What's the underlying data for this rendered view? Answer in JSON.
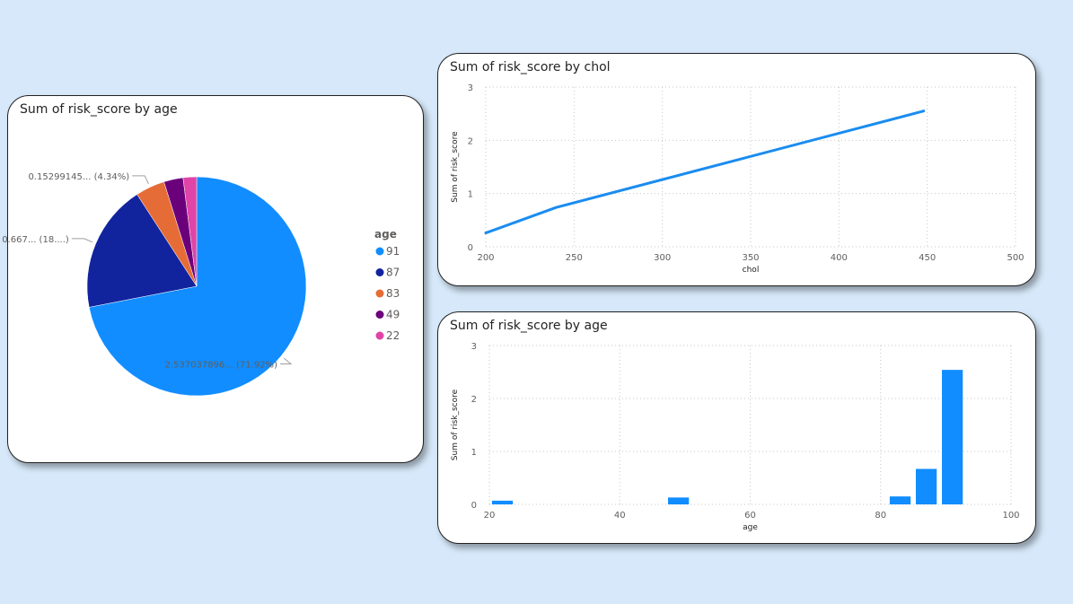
{
  "colors": {
    "background": "#d6e8f9",
    "primary": "#118dff",
    "line": "#1a8cf0"
  },
  "pie_card": {
    "title": "Sum of risk_score by age"
  },
  "line_card": {
    "title": "Sum of risk_score by chol"
  },
  "bar_card": {
    "title": "Sum of risk_score by age"
  },
  "chart_data": [
    {
      "type": "pie",
      "title": "Sum of risk_score by age",
      "legend_title": "age",
      "legend_position": "right",
      "slices": [
        {
          "label": "91",
          "value": 2.537037896,
          "percent": 71.92,
          "color": "#118dff",
          "data_label": "2.537037896... (71.92%)"
        },
        {
          "label": "87",
          "value": 0.667,
          "percent": 18.9,
          "color": "#12239e",
          "data_label": "0.667... (18....)"
        },
        {
          "label": "83",
          "value": 0.15299145,
          "percent": 4.34,
          "color": "#e66c37",
          "data_label": "0.15299145... (4.34%)"
        },
        {
          "label": "49",
          "value": 0.1,
          "percent": 2.8,
          "color": "#6b007b",
          "data_label": ""
        },
        {
          "label": "22",
          "value": 0.07,
          "percent": 2.0,
          "color": "#e044a7",
          "data_label": ""
        }
      ]
    },
    {
      "type": "line",
      "title": "Sum of risk_score by chol",
      "xlabel": "chol",
      "ylabel": "Sum of risk_score",
      "xlim": [
        200,
        500
      ],
      "ylim": [
        0,
        3
      ],
      "xticks": [
        200,
        250,
        300,
        350,
        400,
        450,
        500
      ],
      "yticks": [
        0,
        1,
        2,
        3
      ],
      "grid": true,
      "series": [
        {
          "x": [
            200,
            240,
            448
          ],
          "y": [
            0.26,
            0.74,
            2.55
          ]
        }
      ]
    },
    {
      "type": "bar",
      "title": "Sum of risk_score by age",
      "xlabel": "age",
      "ylabel": "Sum of risk_score",
      "xlim": [
        20,
        100
      ],
      "ylim": [
        0,
        3
      ],
      "xticks": [
        20,
        40,
        60,
        80,
        100
      ],
      "yticks": [
        0,
        1,
        2,
        3
      ],
      "grid": true,
      "x": [
        22,
        49,
        83,
        87,
        91
      ],
      "values": [
        0.07,
        0.13,
        0.15,
        0.67,
        2.54
      ]
    }
  ]
}
